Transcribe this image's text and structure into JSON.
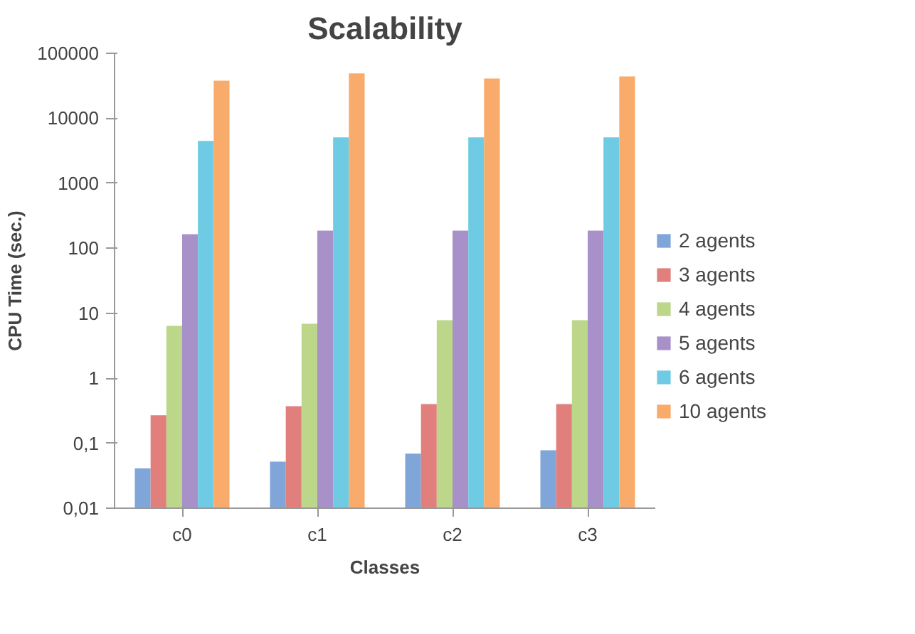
{
  "chart_data": {
    "type": "bar",
    "title": "Scalability",
    "xlabel": "Classes",
    "ylabel": "CPU Time (sec.)",
    "categories": [
      "c0",
      "c1",
      "c2",
      "c3"
    ],
    "series": [
      {
        "name": "2 agents",
        "color": "#7fa5d9",
        "values": [
          0.041,
          0.052,
          0.069,
          0.078
        ]
      },
      {
        "name": "3 agents",
        "color": "#e07f7b",
        "values": [
          0.27,
          0.37,
          0.4,
          0.4
        ]
      },
      {
        "name": "4 agents",
        "color": "#bcd68a",
        "values": [
          6.4,
          6.9,
          7.8,
          7.8
        ]
      },
      {
        "name": "5 agents",
        "color": "#a890c8",
        "values": [
          165,
          187,
          187,
          187
        ]
      },
      {
        "name": "6 agents",
        "color": "#6fcbe3",
        "values": [
          4500,
          5100,
          5100,
          5100
        ]
      },
      {
        "name": "10 agents",
        "color": "#f8ab6a",
        "values": [
          38000,
          49000,
          41000,
          44000
        ]
      }
    ],
    "log": "y",
    "ylim": [
      0.01,
      100000
    ],
    "yticks": [
      {
        "value": 0.01,
        "label": "0,01"
      },
      {
        "value": 0.1,
        "label": "0,1"
      },
      1,
      10,
      100,
      1000,
      10000,
      100000
    ],
    "legend": "right"
  }
}
